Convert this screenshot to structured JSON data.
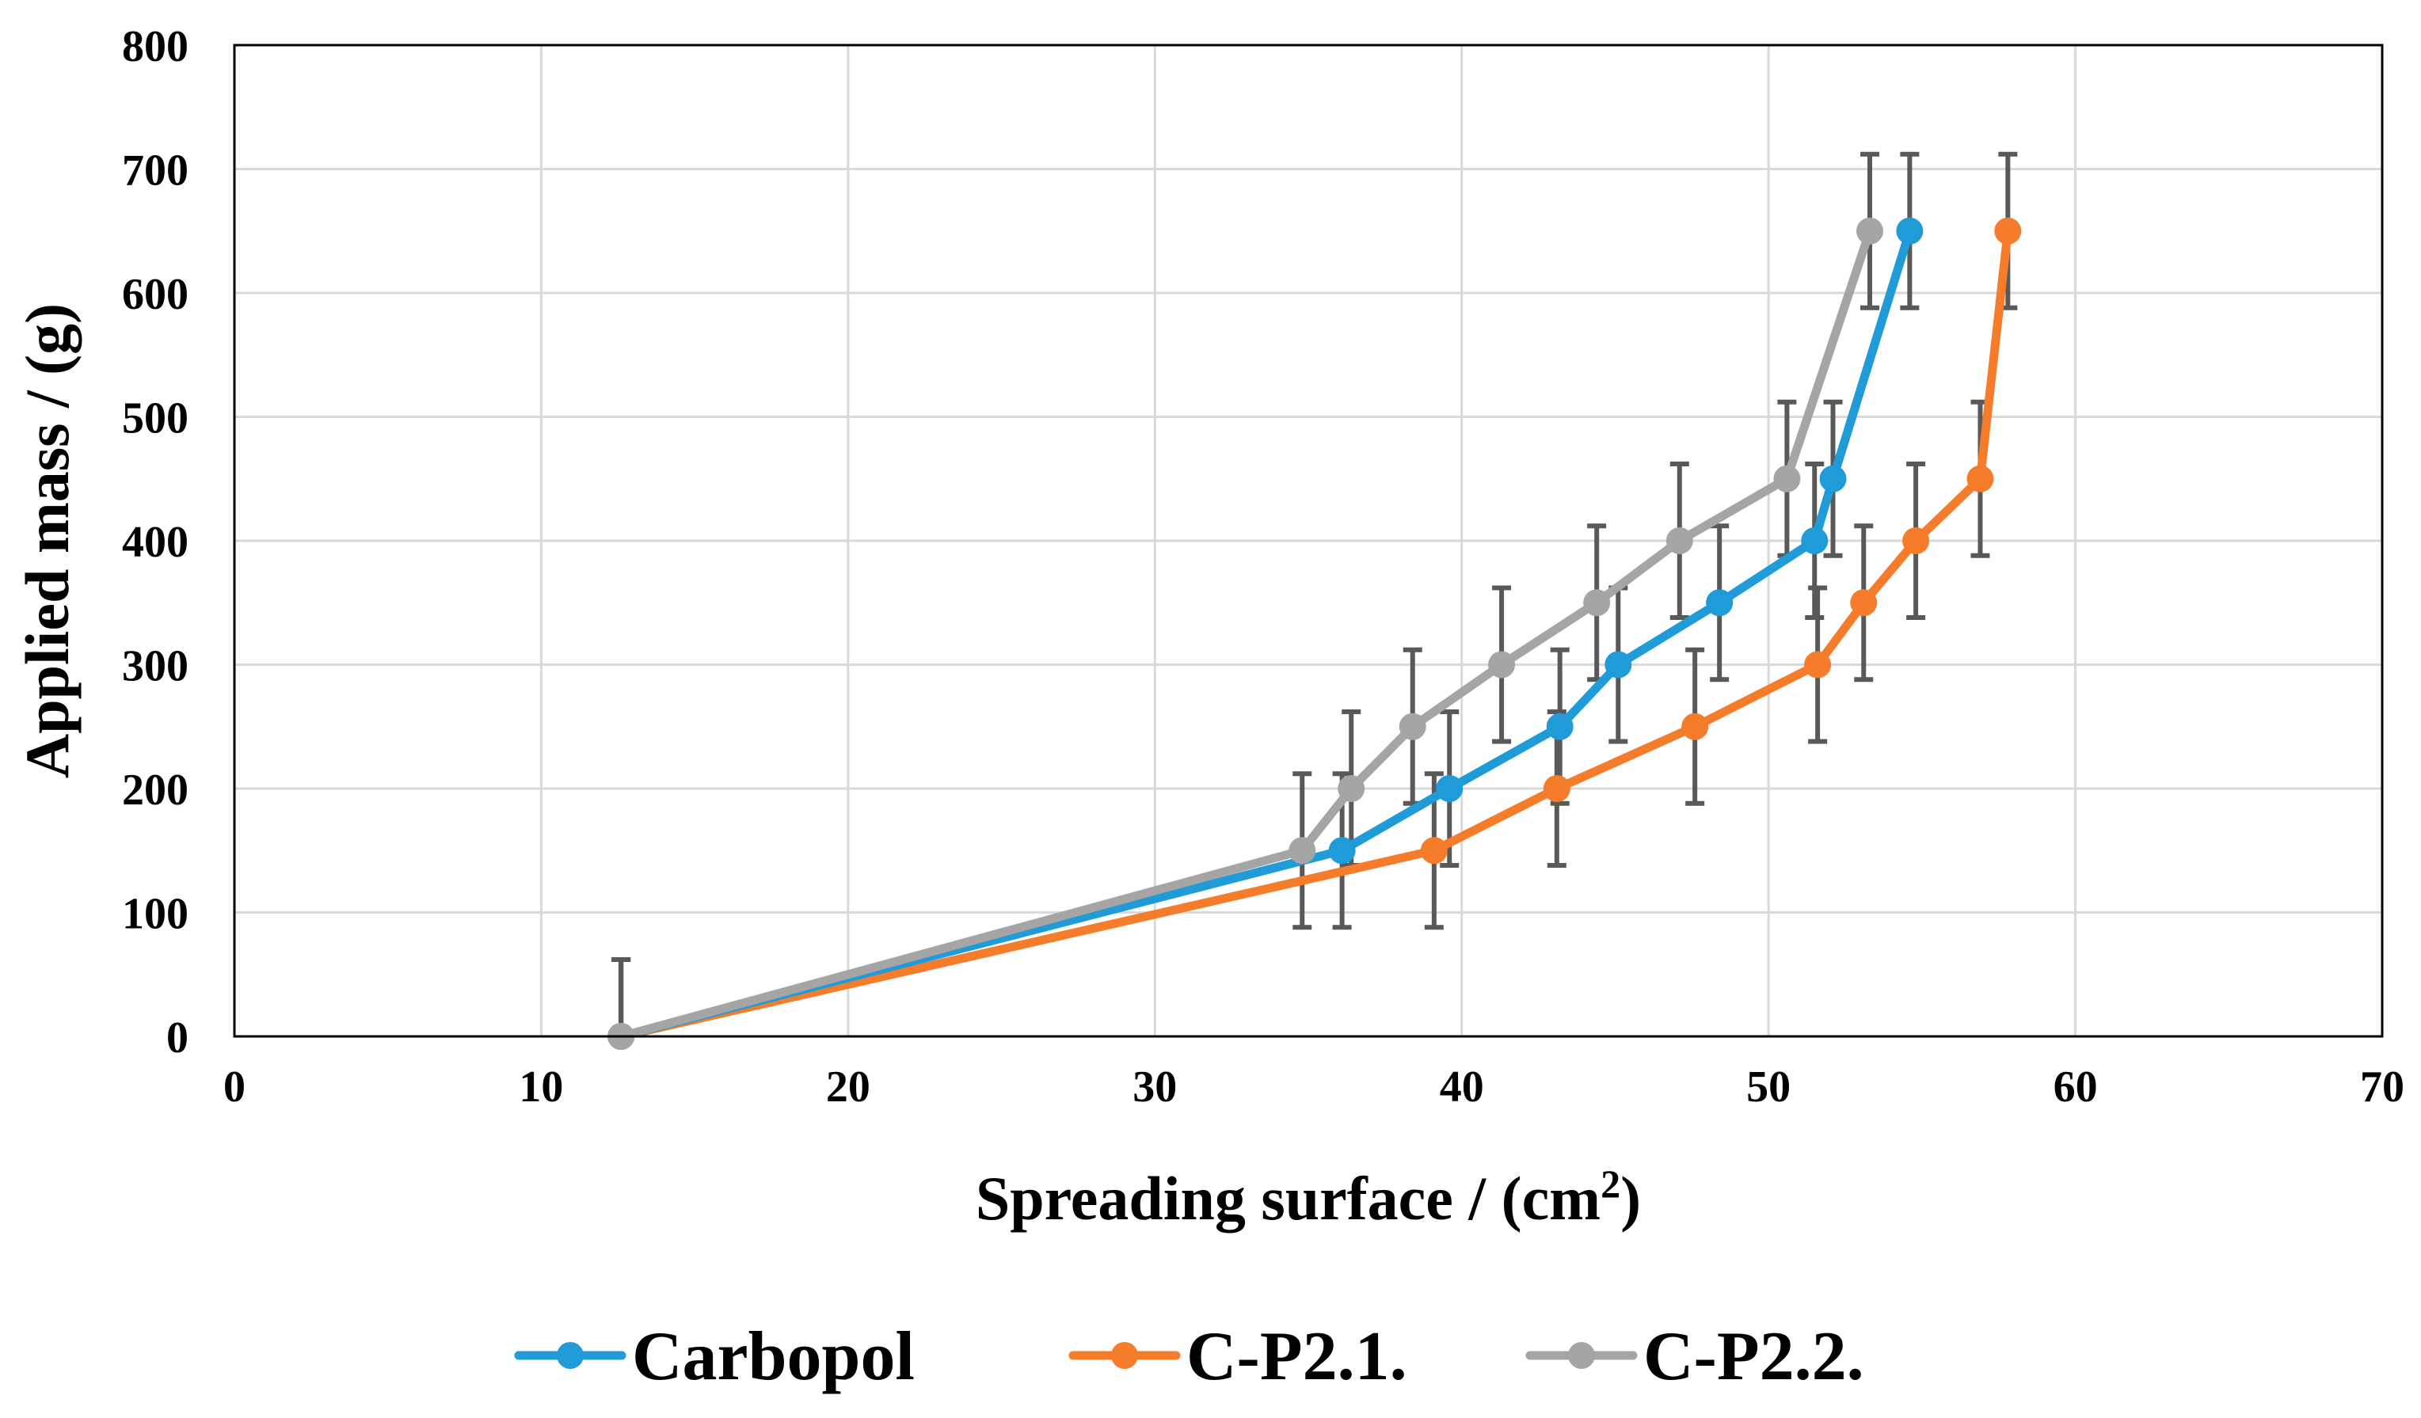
{
  "chart_data": {
    "type": "line",
    "xlabel": "Spreading surface / (cm",
    "xlabel_sup": "2",
    "xlabel_end": ")",
    "ylabel": "Applied mass / (g)",
    "xlim": [
      0,
      70
    ],
    "ylim": [
      0,
      800
    ],
    "x_ticks": [
      0,
      10,
      20,
      30,
      40,
      50,
      60,
      70
    ],
    "y_ticks": [
      0,
      100,
      200,
      300,
      400,
      500,
      600,
      700,
      800
    ],
    "grid": true,
    "legend_position": "bottom",
    "error_bar": 62,
    "series": [
      {
        "name": "Carbopol",
        "color": "#1f9bd7",
        "points": [
          [
            12.6,
            0
          ],
          [
            36.1,
            150
          ],
          [
            39.6,
            200
          ],
          [
            43.2,
            250
          ],
          [
            45.1,
            300
          ],
          [
            48.4,
            350
          ],
          [
            51.5,
            400
          ],
          [
            52.1,
            450
          ],
          [
            54.6,
            650
          ]
        ]
      },
      {
        "name": "C-P2.1.",
        "color": "#f47c2a",
        "points": [
          [
            12.6,
            0
          ],
          [
            39.1,
            150
          ],
          [
            43.1,
            200
          ],
          [
            47.6,
            250
          ],
          [
            51.6,
            300
          ],
          [
            53.1,
            350
          ],
          [
            54.8,
            400
          ],
          [
            56.9,
            450
          ],
          [
            57.8,
            650
          ]
        ]
      },
      {
        "name": "C-P2.2.",
        "color": "#a5a5a5",
        "points": [
          [
            12.6,
            0
          ],
          [
            34.8,
            150
          ],
          [
            36.4,
            200
          ],
          [
            38.4,
            250
          ],
          [
            41.3,
            300
          ],
          [
            44.4,
            350
          ],
          [
            47.1,
            400
          ],
          [
            50.6,
            450
          ],
          [
            53.3,
            650
          ]
        ]
      }
    ]
  }
}
